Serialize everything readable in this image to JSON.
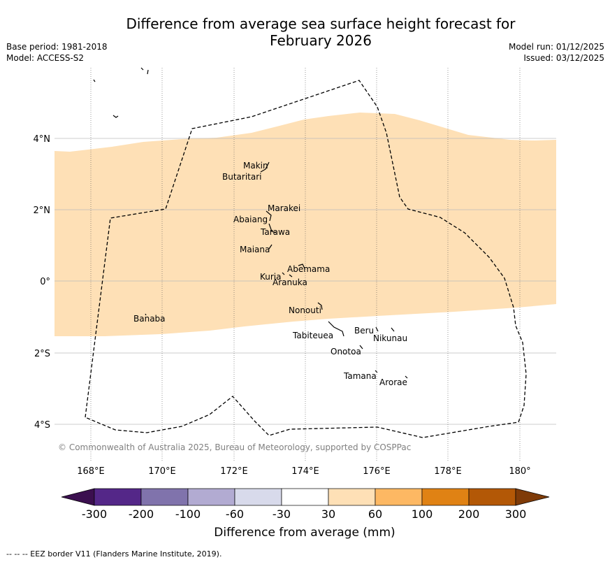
{
  "header": {
    "title_line1": "Difference from average sea surface height forecast for",
    "title_line2": "February 2026",
    "base_period": "Base period: 1981-2018",
    "model": "Model: ACCESS-S2",
    "model_run": "Model run: 01/12/2025",
    "issued": "Issued: 03/12/2025"
  },
  "map": {
    "lon_ticks": [
      "168°E",
      "170°E",
      "172°E",
      "174°E",
      "176°E",
      "178°E",
      "180°"
    ],
    "lat_ticks": [
      "4°N",
      "2°N",
      "0°",
      "2°S",
      "4°S"
    ],
    "islands": [
      "Makin",
      "Butaritari",
      "Marakei",
      "Abaiang",
      "Tarawa",
      "Maiana",
      "Abemama",
      "Kuria",
      "Aranuka",
      "Nonouti",
      "Banaba",
      "Tabiteuea",
      "Beru",
      "Nikunau",
      "Onotoa",
      "Tamana",
      "Arorae"
    ],
    "copyright": "© Commonwealth of Australia 2025, Bureau of Meteorology, supported by COSPPac",
    "anomaly_band": "30 to 60"
  },
  "colorbar": {
    "labels": [
      "-300",
      "-200",
      "-100",
      "-60",
      "-30",
      "30",
      "60",
      "100",
      "200",
      "300"
    ],
    "colors": [
      "#3b0f4f",
      "#542788",
      "#8073ac",
      "#b2abd2",
      "#d8daeb",
      "#ffffff",
      "#fee0b6",
      "#fdb863",
      "#e08214",
      "#b35806",
      "#7f3b08"
    ],
    "title": "Difference from average (mm)"
  },
  "footer": {
    "legend": "--  --  -- EEZ border V11 (Flanders Marine Institute, 2019)."
  }
}
